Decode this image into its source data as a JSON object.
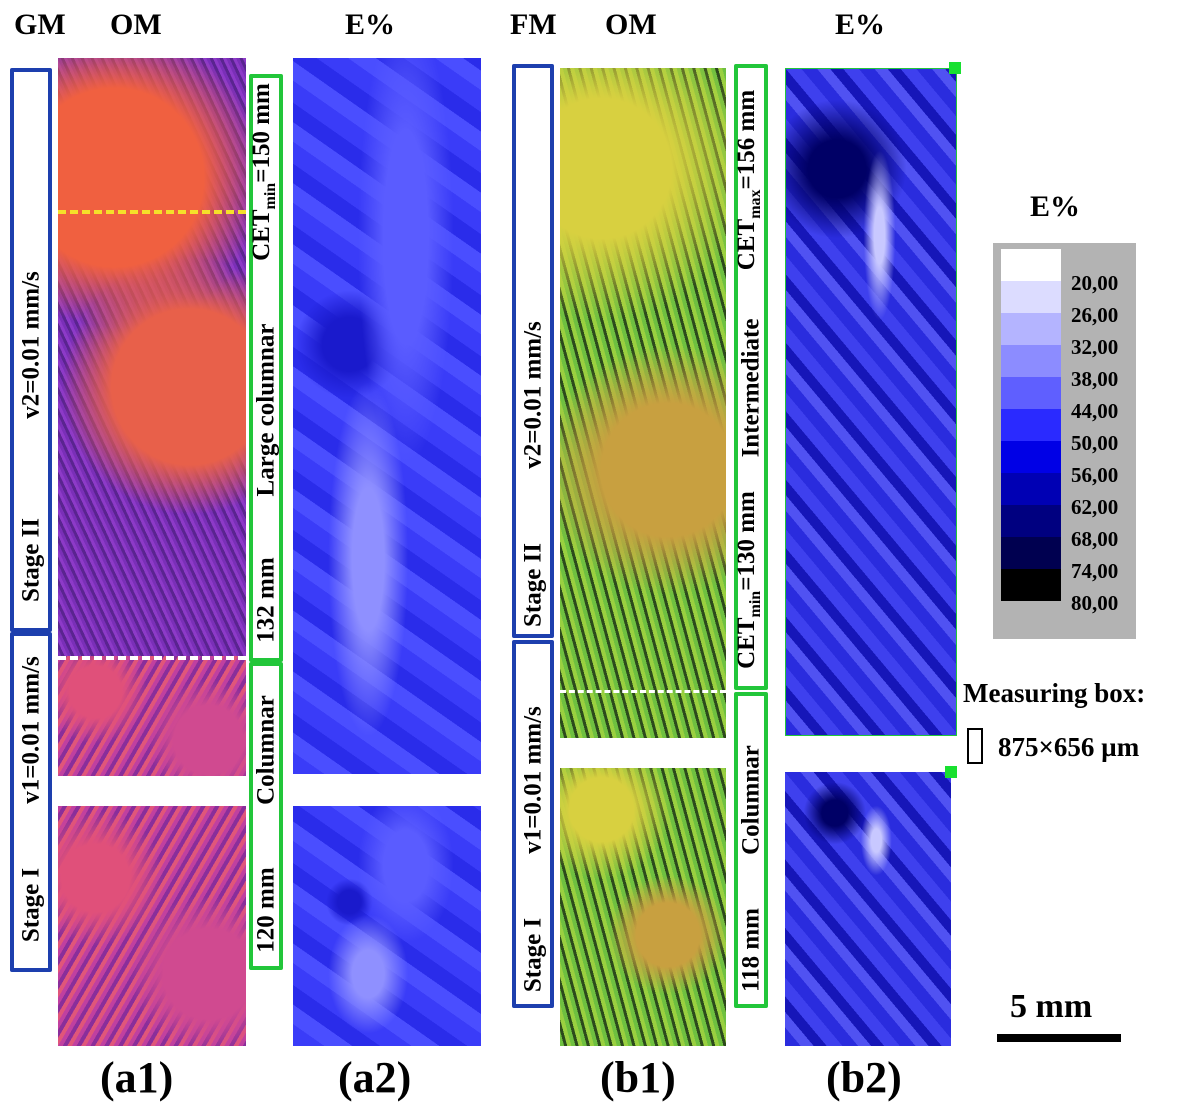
{
  "headers": {
    "gm": "GM",
    "om_left": "OM",
    "e_left": "E%",
    "fm": "FM",
    "om_right": "OM",
    "e_right": "E%"
  },
  "panel_a1": {
    "label": "(a1)",
    "stage_ii": "Stage II",
    "v2": "v2=0.01 mm/s",
    "stage_i": "Stage I",
    "v1": "v1=0.01 mm/s"
  },
  "panel_a1_green": {
    "cet_prefix": "CET",
    "cet_sub": "min",
    "cet_value": "=150 mm",
    "large_columnar": "Large columnar",
    "mm132": "132 mm",
    "columnar": "Columnar",
    "mm120": "120 mm"
  },
  "panel_a2": {
    "label": "(a2)"
  },
  "panel_b1": {
    "label": "(b1)",
    "stage_ii": "Stage II",
    "v2": "v2=0.01 mm/s",
    "stage_i": "Stage I",
    "v1": "v1=0.01 mm/s"
  },
  "panel_b1_green": {
    "cet_max_prefix": "CET",
    "cet_max_sub": "max",
    "cet_max_value": "=156 mm",
    "intermediate": "Intermediate",
    "cet_min_prefix": "CET",
    "cet_min_sub": "min",
    "cet_min_value": "=130 mm",
    "columnar": "Columnar",
    "mm118": "118 mm"
  },
  "panel_b2": {
    "label": "(b2)"
  },
  "legend": {
    "title": "E%",
    "values": [
      "20,00",
      "26,00",
      "32,00",
      "38,00",
      "44,00",
      "50,00",
      "56,00",
      "62,00",
      "68,00",
      "74,00",
      "80,00"
    ],
    "colors": [
      "#ffffff",
      "#dcdcff",
      "#b4b4ff",
      "#8c8cff",
      "#5f5fff",
      "#2a2aff",
      "#0000e6",
      "#0000b4",
      "#000080",
      "#000050",
      "#000000"
    ]
  },
  "measuring_box": {
    "title": "Measuring box:",
    "size": "875×656 µm"
  },
  "scale_bar": {
    "label": "5 mm"
  }
}
